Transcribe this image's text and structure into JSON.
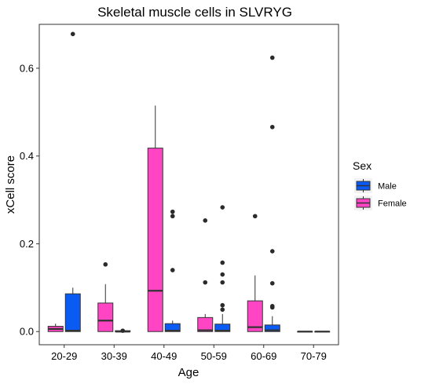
{
  "chart_data": {
    "type": "boxplot",
    "title": "Skeletal muscle cells in SLVRYG",
    "xlabel": "Age",
    "ylabel": "xCell score",
    "ylim": [
      -0.03,
      0.7
    ],
    "yticks": [
      0.0,
      0.2,
      0.4,
      0.6
    ],
    "ytick_labels": [
      "0.0",
      "0.2",
      "0.4",
      "0.6"
    ],
    "grid": false,
    "legend_position": "right",
    "legend_title": "Sex",
    "categories": [
      "20-29",
      "30-39",
      "40-49",
      "50-59",
      "60-69",
      "70-79"
    ],
    "series": [
      {
        "name": "Male",
        "color": "#0a5bf4",
        "boxes": [
          {
            "category": "20-29",
            "min": 0.0,
            "q1": 0.0,
            "median": 0.002,
            "q3": 0.086,
            "max": 0.1,
            "outliers": [
              0.678
            ]
          },
          {
            "category": "30-39",
            "min": 0.0,
            "q1": 0.0,
            "median": 0.0,
            "q3": 0.002,
            "max": 0.003,
            "outliers": [
              0.002
            ]
          },
          {
            "category": "40-49",
            "min": 0.0,
            "q1": 0.0,
            "median": 0.002,
            "q3": 0.018,
            "max": 0.025,
            "outliers": [
              0.14,
              0.263,
              0.273
            ]
          },
          {
            "category": "50-59",
            "min": 0.0,
            "q1": 0.0,
            "median": 0.002,
            "q3": 0.017,
            "max": 0.04,
            "outliers": [
              0.05,
              0.06,
              0.112,
              0.13,
              0.157,
              0.283
            ]
          },
          {
            "category": "60-69",
            "min": 0.0,
            "q1": 0.0,
            "median": 0.003,
            "q3": 0.015,
            "max": 0.035,
            "outliers": [
              0.055,
              0.058,
              0.11,
              0.183,
              0.466,
              0.624
            ]
          },
          {
            "category": "70-79",
            "min": 0.0,
            "q1": 0.0,
            "median": 0.0,
            "q3": 0.0,
            "max": 0.0,
            "outliers": []
          }
        ]
      },
      {
        "name": "Female",
        "color": "#ff44c4",
        "boxes": [
          {
            "category": "20-29",
            "min": 0.0,
            "q1": 0.0,
            "median": 0.006,
            "q3": 0.012,
            "max": 0.018,
            "outliers": []
          },
          {
            "category": "30-39",
            "min": 0.0,
            "q1": 0.0,
            "median": 0.025,
            "q3": 0.065,
            "max": 0.108,
            "outliers": [
              0.153
            ]
          },
          {
            "category": "40-49",
            "min": 0.0,
            "q1": 0.0,
            "median": 0.093,
            "q3": 0.418,
            "max": 0.515,
            "outliers": []
          },
          {
            "category": "50-59",
            "min": 0.0,
            "q1": 0.0,
            "median": 0.003,
            "q3": 0.032,
            "max": 0.04,
            "outliers": [
              0.112,
              0.253
            ]
          },
          {
            "category": "60-69",
            "min": 0.0,
            "q1": 0.0,
            "median": 0.01,
            "q3": 0.07,
            "max": 0.128,
            "outliers": [
              0.263
            ]
          },
          {
            "category": "70-79",
            "min": 0.0,
            "q1": 0.0,
            "median": 0.0,
            "q3": 0.0,
            "max": 0.0,
            "outliers": []
          }
        ]
      }
    ]
  }
}
